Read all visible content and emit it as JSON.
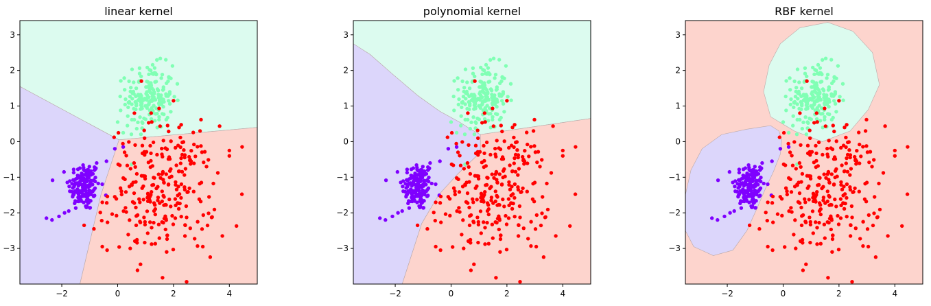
{
  "chart_data": {
    "type": "scatter",
    "xlim": [
      -3.5,
      5.0
    ],
    "ylim": [
      -4.0,
      3.4
    ],
    "xticks": [
      -2,
      0,
      2,
      4
    ],
    "xtick_labels": [
      "−2",
      "0",
      "2",
      "4"
    ],
    "yticks": [
      3,
      2,
      1,
      0,
      -1,
      -2,
      -3
    ],
    "ytick_labels": [
      "3",
      "2",
      "1",
      "0",
      "−1",
      "−2",
      "−3"
    ],
    "grid": false,
    "colors": {
      "purple_points": "#7f00ff",
      "green_points": "#80ffb4",
      "red_points": "#ff0000",
      "purple_region": "#dcd6fb",
      "green_region": "#dcfbef",
      "red_region": "#fdd4cd"
    },
    "clusters": [
      {
        "color_key": "purple_points",
        "cx": -1.2,
        "cy": -1.25,
        "sx": 0.28,
        "sy": 0.35,
        "n": 160
      },
      {
        "color_key": "green_points",
        "cx": 1.15,
        "cy": 1.25,
        "sx": 0.42,
        "sy": 0.45,
        "n": 190
      },
      {
        "color_key": "red_points",
        "cx": 1.6,
        "cy": -1.35,
        "sx": 0.95,
        "sy": 0.9,
        "n": 260
      }
    ],
    "extra_points": {
      "purple": [
        [
          -2.55,
          -2.15
        ],
        [
          -2.35,
          -2.2
        ],
        [
          -2.1,
          -2.1
        ],
        [
          -1.9,
          -2.0
        ],
        [
          -1.75,
          -1.95
        ],
        [
          -0.1,
          -0.2
        ],
        [
          0.2,
          -0.15
        ],
        [
          -0.75,
          -0.6
        ],
        [
          -0.4,
          -0.55
        ]
      ],
      "red": [
        [
          0.85,
          1.7
        ],
        [
          0.6,
          0.8
        ],
        [
          1.2,
          0.8
        ],
        [
          2.0,
          1.15
        ],
        [
          2.2,
          0.4
        ],
        [
          2.95,
          0.3
        ],
        [
          4.0,
          -0.25
        ],
        [
          4.0,
          -0.4
        ],
        [
          3.75,
          -2.65
        ],
        [
          3.05,
          -2.95
        ],
        [
          -0.55,
          -2.95
        ],
        [
          0.45,
          -3.0
        ],
        [
          -1.2,
          -2.35
        ],
        [
          -0.85,
          -2.45
        ],
        [
          0.25,
          -0.3
        ]
      ],
      "green": [
        [
          0.0,
          0.55
        ],
        [
          0.2,
          0.25
        ],
        [
          0.35,
          0.45
        ]
      ]
    },
    "panels": [
      {
        "title": "linear kernel",
        "regions": [
          {
            "color_key": "purple_region",
            "points": [
              [
                -3.5,
                -4.0
              ],
              [
                -1.35,
                -4.0
              ],
              [
                -0.6,
                -1.5
              ],
              [
                0.05,
                0.05
              ],
              [
                -3.5,
                1.55
              ]
            ]
          },
          {
            "color_key": "green_region",
            "points": [
              [
                -3.5,
                3.4
              ],
              [
                5.0,
                3.4
              ],
              [
                5.0,
                0.4
              ],
              [
                0.05,
                0.05
              ],
              [
                -3.5,
                1.55
              ]
            ]
          },
          {
            "color_key": "red_region",
            "points": [
              [
                -1.35,
                -4.0
              ],
              [
                5.0,
                -4.0
              ],
              [
                5.0,
                0.4
              ],
              [
                0.05,
                0.05
              ],
              [
                -0.6,
                -1.5
              ]
            ]
          }
        ]
      },
      {
        "title": "polynomial kernel",
        "regions": [
          {
            "color_key": "purple_region",
            "points": [
              [
                -3.5,
                -4.0
              ],
              [
                -1.75,
                -4.0
              ],
              [
                -1.05,
                -2.3
              ],
              [
                -0.45,
                -1.5
              ],
              [
                0.25,
                -0.9
              ],
              [
                1.05,
                -0.3
              ],
              [
                1.05,
                0.2
              ],
              [
                0.7,
                0.35
              ],
              [
                0.3,
                0.55
              ],
              [
                -0.4,
                0.85
              ],
              [
                -1.2,
                1.3
              ],
              [
                -2.1,
                1.9
              ],
              [
                -2.9,
                2.45
              ],
              [
                -3.5,
                2.75
              ]
            ]
          },
          {
            "color_key": "green_region",
            "points": [
              [
                -3.5,
                3.4
              ],
              [
                5.0,
                3.4
              ],
              [
                5.0,
                0.65
              ],
              [
                1.05,
                0.2
              ],
              [
                0.7,
                0.35
              ],
              [
                0.3,
                0.55
              ],
              [
                -0.4,
                0.85
              ],
              [
                -1.2,
                1.3
              ],
              [
                -2.1,
                1.9
              ],
              [
                -2.9,
                2.45
              ],
              [
                -3.5,
                2.75
              ]
            ]
          },
          {
            "color_key": "red_region",
            "points": [
              [
                -1.75,
                -4.0
              ],
              [
                5.0,
                -4.0
              ],
              [
                5.0,
                0.65
              ],
              [
                1.05,
                0.2
              ],
              [
                1.05,
                -0.3
              ],
              [
                0.25,
                -0.9
              ],
              [
                -0.45,
                -1.5
              ],
              [
                -1.05,
                -2.3
              ]
            ]
          }
        ]
      },
      {
        "title": "RBF kernel",
        "regions": [
          {
            "color_key": "red_region",
            "points": [
              [
                -3.5,
                -4.0
              ],
              [
                5.0,
                -4.0
              ],
              [
                5.0,
                3.4
              ],
              [
                -3.5,
                3.4
              ]
            ]
          },
          {
            "color_key": "green_region",
            "points": [
              [
                -0.7,
                1.4
              ],
              [
                -0.5,
                2.15
              ],
              [
                -0.1,
                2.75
              ],
              [
                0.6,
                3.2
              ],
              [
                1.6,
                3.35
              ],
              [
                2.5,
                3.1
              ],
              [
                3.2,
                2.5
              ],
              [
                3.45,
                1.6
              ],
              [
                3.05,
                0.9
              ],
              [
                2.4,
                0.3
              ],
              [
                1.4,
                0.0
              ],
              [
                0.4,
                0.3
              ],
              [
                -0.45,
                0.7
              ]
            ]
          },
          {
            "color_key": "purple_region",
            "points": [
              [
                -0.45,
                0.45
              ],
              [
                -0.15,
                0.3
              ],
              [
                -0.05,
                0.05
              ],
              [
                -0.1,
                -0.35
              ],
              [
                -0.35,
                -0.85
              ],
              [
                -0.65,
                -1.35
              ],
              [
                -0.95,
                -1.9
              ],
              [
                -1.3,
                -2.5
              ],
              [
                -1.8,
                -3.05
              ],
              [
                -2.5,
                -3.2
              ],
              [
                -3.2,
                -2.95
              ],
              [
                -3.5,
                -2.5
              ],
              [
                -3.5,
                -1.5
              ],
              [
                -3.3,
                -0.8
              ],
              [
                -2.9,
                -0.2
              ],
              [
                -2.2,
                0.2
              ],
              [
                -1.3,
                0.35
              ]
            ]
          }
        ]
      }
    ]
  }
}
